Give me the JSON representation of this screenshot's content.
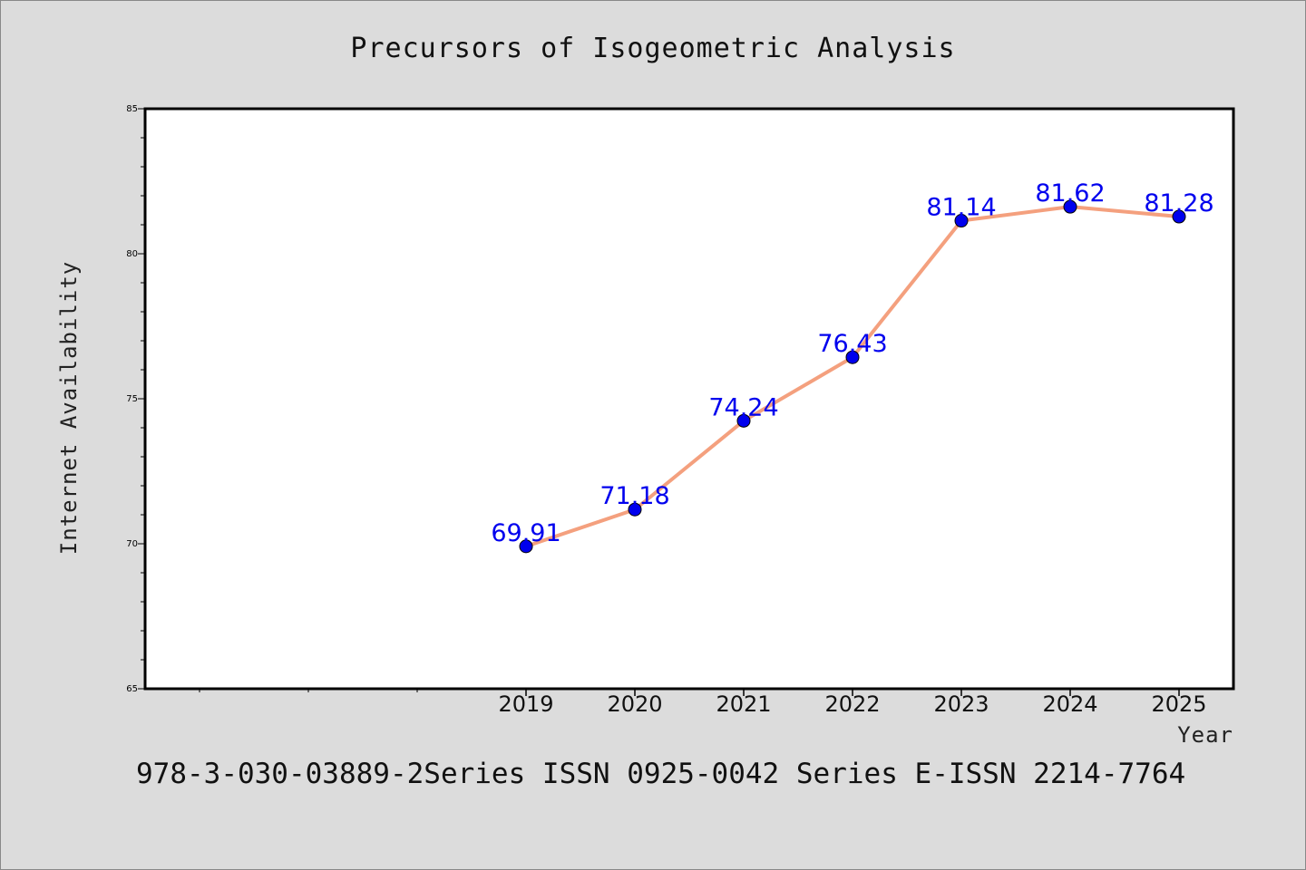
{
  "chart_data": {
    "type": "line",
    "title": "Precursors of Isogeometric Analysis",
    "xlabel": "Year",
    "ylabel": "Internet Availability",
    "categories": [
      "2019",
      "2020",
      "2021",
      "2022",
      "2023",
      "2024",
      "2025"
    ],
    "series": [
      {
        "values": [
          69.91,
          71.18,
          74.24,
          76.43,
          81.14,
          81.62,
          81.28
        ]
      }
    ],
    "data_labels": [
      "69.91",
      "71.18",
      "74.24",
      "76.43",
      "81.14",
      "81.62",
      "81.28"
    ],
    "ylim": [
      65,
      85
    ],
    "yticks": [
      "65",
      "70",
      "75",
      "80",
      "85"
    ],
    "grid": false,
    "line_color": "#f4a07e",
    "marker_color": "#0000ee",
    "label_color": "#0000ee"
  },
  "footer": {
    "text": "978-3-030-03889-2Series ISSN 0925-0042 Series E-ISSN 2214-7764"
  }
}
